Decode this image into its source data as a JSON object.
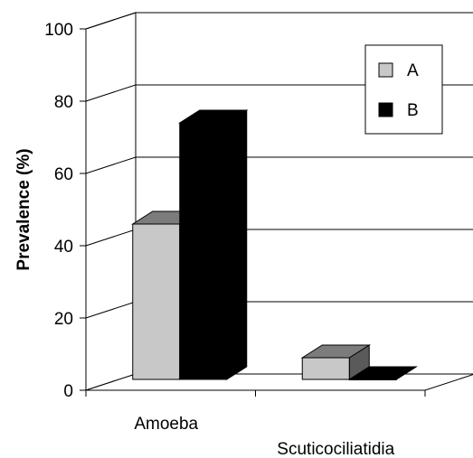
{
  "chart_data": {
    "type": "bar",
    "style": "3d-clustered-column",
    "categories": [
      "Amoeba",
      "Scuticociliatidia"
    ],
    "series": [
      {
        "name": "A",
        "values": [
          43,
          6
        ],
        "color": "#c8c8c8"
      },
      {
        "name": "B",
        "values": [
          71,
          0
        ],
        "color": "#000000"
      }
    ],
    "xlabel": "",
    "ylabel": "Prevalence (%)",
    "ylim": [
      0,
      100
    ],
    "yticks": [
      0,
      20,
      40,
      60,
      80,
      100
    ],
    "grid": true,
    "legend": "top-right"
  }
}
